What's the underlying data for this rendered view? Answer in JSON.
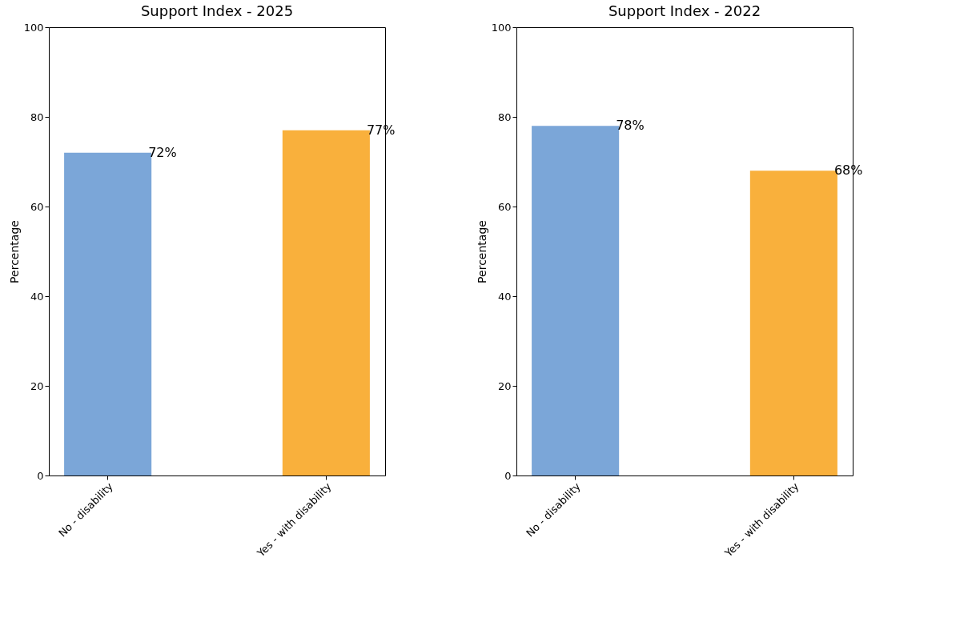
{
  "chart_data": [
    {
      "type": "bar",
      "title": "Support Index - 2025",
      "ylabel": "Percentage",
      "categories": [
        "No - disability",
        "Yes - with disability"
      ],
      "values": [
        72,
        77
      ],
      "colors": [
        "#7ba6d8",
        "#f9b03c"
      ],
      "value_labels": [
        "72%",
        "77%"
      ],
      "ylim": [
        0,
        100
      ],
      "yticks": [
        0,
        20,
        40,
        60,
        80,
        100
      ]
    },
    {
      "type": "bar",
      "title": "Support Index - 2022",
      "ylabel": "Percentage",
      "categories": [
        "No - disability",
        "Yes - with disability"
      ],
      "values": [
        78,
        68
      ],
      "colors": [
        "#7ba6d8",
        "#f9b03c"
      ],
      "value_labels": [
        "78%",
        "68%"
      ],
      "ylim": [
        0,
        100
      ],
      "yticks": [
        0,
        20,
        40,
        60,
        80,
        100
      ]
    }
  ]
}
